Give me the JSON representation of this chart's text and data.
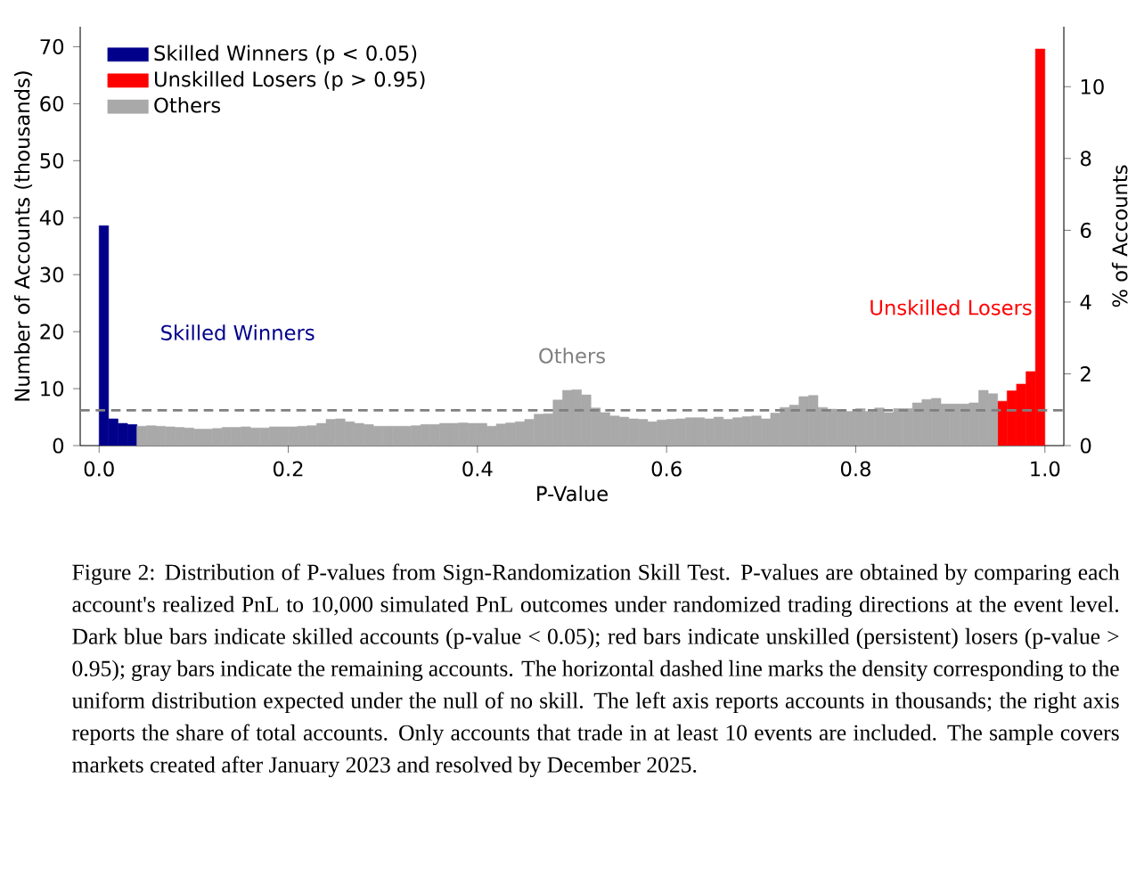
{
  "chart_data": {
    "type": "histogram",
    "bins": [
      0,
      0.01,
      0.02,
      0.03,
      0.04,
      0.05,
      0.06,
      0.07,
      0.08,
      0.09,
      0.1,
      0.11,
      0.12,
      0.13,
      0.14,
      0.15,
      0.16,
      0.17,
      0.18,
      0.19,
      0.2,
      0.21,
      0.22,
      0.23,
      0.24,
      0.25,
      0.26,
      0.27,
      0.28,
      0.29,
      0.3,
      0.31,
      0.32,
      0.33,
      0.34,
      0.35,
      0.36,
      0.37,
      0.38,
      0.39,
      0.4,
      0.41,
      0.42,
      0.43,
      0.44,
      0.45,
      0.46,
      0.47,
      0.48,
      0.49,
      0.5,
      0.51,
      0.52,
      0.53,
      0.54,
      0.55,
      0.56,
      0.57,
      0.58,
      0.59,
      0.6,
      0.61,
      0.62,
      0.63,
      0.64,
      0.65,
      0.66,
      0.67,
      0.68,
      0.69,
      0.7,
      0.71,
      0.72,
      0.73,
      0.74,
      0.75,
      0.76,
      0.77,
      0.78,
      0.79,
      0.8,
      0.81,
      0.82,
      0.83,
      0.84,
      0.85,
      0.86,
      0.87,
      0.88,
      0.89,
      0.9,
      0.91,
      0.92,
      0.93,
      0.94,
      0.95,
      0.96,
      0.97,
      0.98,
      0.99,
      1
    ],
    "series": [
      {
        "name": "Skilled Winners (p < 0.05)",
        "color": "#00008b",
        "values": [
          38.6,
          4.7,
          3.9,
          3.7,
          null,
          null,
          null,
          null,
          null,
          null,
          null,
          null,
          null,
          null,
          null,
          null,
          null,
          null,
          null,
          null,
          null,
          null,
          null,
          null,
          null,
          null,
          null,
          null,
          null,
          null,
          null,
          null,
          null,
          null,
          null,
          null,
          null,
          null,
          null,
          null,
          null,
          null,
          null,
          null,
          null,
          null,
          null,
          null,
          null,
          null,
          null,
          null,
          null,
          null,
          null,
          null,
          null,
          null,
          null,
          null,
          null,
          null,
          null,
          null,
          null,
          null,
          null,
          null,
          null,
          null,
          null,
          null,
          null,
          null,
          null,
          null,
          null,
          null,
          null,
          null,
          null,
          null,
          null,
          null,
          null,
          null,
          null,
          null,
          null,
          null,
          null,
          null,
          null,
          null,
          null,
          null,
          null,
          null,
          null,
          null
        ]
      },
      {
        "name": "Unskilled Losers (p > 0.95)",
        "color": "#ff0000",
        "values": [
          null,
          null,
          null,
          null,
          null,
          null,
          null,
          null,
          null,
          null,
          null,
          null,
          null,
          null,
          null,
          null,
          null,
          null,
          null,
          null,
          null,
          null,
          null,
          null,
          null,
          null,
          null,
          null,
          null,
          null,
          null,
          null,
          null,
          null,
          null,
          null,
          null,
          null,
          null,
          null,
          null,
          null,
          null,
          null,
          null,
          null,
          null,
          null,
          null,
          null,
          null,
          null,
          null,
          null,
          null,
          null,
          null,
          null,
          null,
          null,
          null,
          null,
          null,
          null,
          null,
          null,
          null,
          null,
          null,
          null,
          null,
          null,
          null,
          null,
          null,
          null,
          null,
          null,
          null,
          null,
          null,
          null,
          null,
          null,
          null,
          null,
          null,
          null,
          null,
          null,
          null,
          null,
          null,
          null,
          null,
          7.8,
          9.6,
          10.8,
          13.0,
          69.6
        ]
      },
      {
        "name": "Others",
        "color": "#a9a9a9",
        "values": [
          null,
          null,
          null,
          null,
          3.4,
          3.5,
          3.4,
          3.3,
          3.2,
          3.1,
          2.9,
          2.9,
          3.0,
          3.2,
          3.2,
          3.3,
          3.1,
          3.1,
          3.3,
          3.3,
          3.3,
          3.4,
          3.5,
          3.9,
          4.6,
          4.7,
          4.2,
          3.9,
          3.7,
          3.4,
          3.4,
          3.4,
          3.4,
          3.5,
          3.7,
          3.7,
          3.9,
          3.9,
          4.0,
          3.9,
          3.9,
          3.4,
          3.8,
          4.0,
          4.2,
          4.6,
          5.5,
          5.6,
          8.0,
          9.7,
          9.8,
          8.9,
          6.6,
          5.8,
          5.2,
          5.0,
          4.7,
          4.6,
          4.2,
          4.5,
          4.6,
          4.7,
          4.9,
          4.9,
          4.7,
          5.0,
          4.6,
          4.9,
          5.1,
          5.2,
          4.7,
          5.7,
          6.7,
          7.1,
          8.6,
          8.8,
          6.7,
          6.4,
          6.2,
          6.0,
          6.5,
          6.0,
          6.6,
          5.8,
          6.5,
          6.5,
          7.5,
          8.1,
          8.3,
          7.3,
          7.3,
          7.3,
          7.5,
          9.7,
          9.1,
          null,
          null,
          null,
          null,
          null
        ]
      }
    ],
    "xlabel": "P-Value",
    "ylabel": "Number of Accounts (thousands)",
    "y2label": "% of Accounts",
    "xlim": [
      -0.02,
      1.02
    ],
    "ylim": [
      0,
      73.5
    ],
    "y2lim": [
      0,
      11.67
    ],
    "xticks": [
      {
        "value": 0,
        "label": "0.0"
      },
      {
        "value": 0.2,
        "label": "0.2"
      },
      {
        "value": 0.4,
        "label": "0.4"
      },
      {
        "value": 0.6,
        "label": "0.6"
      },
      {
        "value": 0.8,
        "label": "0.8"
      },
      {
        "value": 1,
        "label": "1.0"
      }
    ],
    "yticks": [
      0,
      10,
      20,
      30,
      40,
      50,
      60,
      70
    ],
    "y2ticks": [
      0,
      2,
      4,
      6,
      8,
      10
    ],
    "ref_lines": [
      {
        "axis": "y",
        "value": 6.2,
        "color": "#808080",
        "line_style": "dashed"
      }
    ],
    "legend": "top left",
    "annotations": [
      "Skilled Winners",
      "Unskilled Losers",
      "Others",
      "Figure 2: Distribution of P-values from Sign-Randomization Skill Test. P-values are obtained by comparing each account's realized PnL to 10,000 simulated PnL outcomes under randomized trading directions at the event level. Dark blue bars indicate skilled accounts (p-value < 0.05); red bars indicate unskilled (persistent) losers (p-value > 0.95); gray bars indicate the remaining accounts. The horizontal dashed line marks the density corresponding to the uniform distribution expected under the null of no skill. The left axis reports accounts in thousands; the right axis reports the share of total accounts. Only accounts that trade in at least 10 events are included. The sample covers markets created after January 2023 and resolved by December 2025."
    ]
  }
}
